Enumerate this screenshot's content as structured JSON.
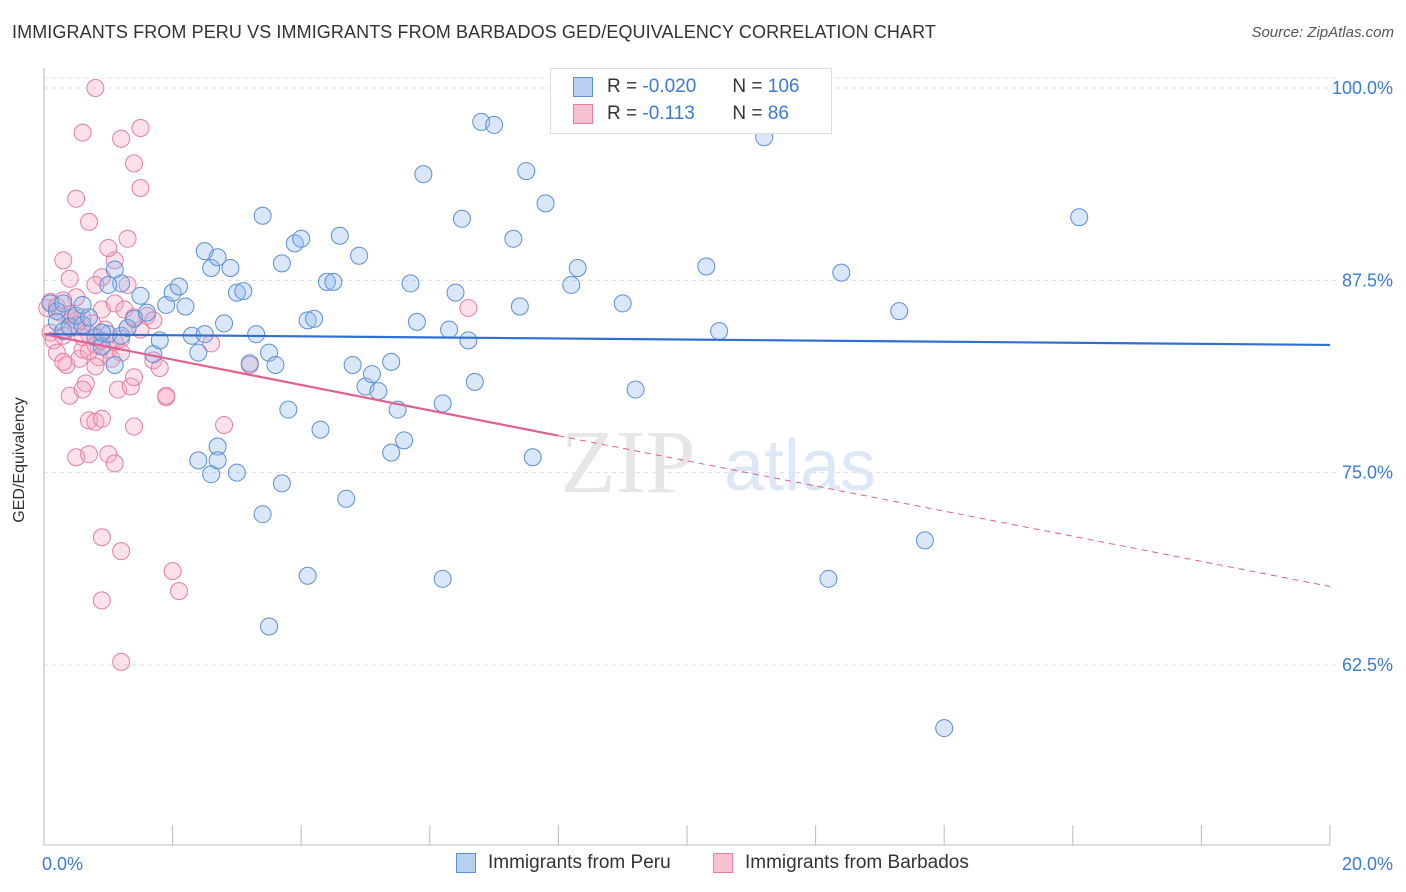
{
  "title": "IMMIGRANTS FROM PERU VS IMMIGRANTS FROM BARBADOS GED/EQUIVALENCY CORRELATION CHART",
  "source": "Source: ZipAtlas.com",
  "watermark": {
    "zip": "ZIP",
    "atlas": "atlas"
  },
  "legend": {
    "r_label": "R =",
    "n_label": "N =",
    "rows": [
      {
        "r": "-0.020",
        "n": "106",
        "color": "#5b8fd6",
        "fill": "#b7d0f2"
      },
      {
        "r": "-0.113",
        "n": "86",
        "color": "#e57fa0",
        "fill": "#f7c1d3"
      }
    ]
  },
  "bottom_legend": [
    "Immigrants from Peru",
    "Immigrants from Barbados"
  ],
  "colors": {
    "peru": "#5b8fd6",
    "peru_fill": "rgba(150,185,235,0.35)",
    "barbados": "#e57fa0",
    "barbados_fill": "rgba(245,170,195,0.35)",
    "peru_line": "#2f6fcf",
    "barbados_line": "#e0608f",
    "tick_text": "#3a7bd5"
  },
  "chart_data": {
    "type": "scatter",
    "title": "IMMIGRANTS FROM PERU VS IMMIGRANTS FROM BARBADOS GED/EQUIVALENCY CORRELATION CHART",
    "xlabel": "",
    "ylabel": "GED/Equivalency",
    "xlim": [
      0,
      20
    ],
    "ylim": [
      50.8,
      101.3
    ],
    "x_tick_labels": [
      "0.0%",
      "20.0%"
    ],
    "y_ticks": [
      62.5,
      75.0,
      87.5,
      100.0
    ],
    "y_tick_labels": [
      "62.5%",
      "75.0%",
      "87.5%",
      "100.0%"
    ],
    "grid": true,
    "series": [
      {
        "name": "Immigrants from Peru",
        "r": -0.02,
        "n": 106,
        "trend": {
          "x": [
            0,
            20
          ],
          "y": [
            84.0,
            83.3
          ]
        },
        "points": [
          [
            0.1,
            86.0
          ],
          [
            0.2,
            85.5
          ],
          [
            0.2,
            84.8
          ],
          [
            0.3,
            84.2
          ],
          [
            0.4,
            84.5
          ],
          [
            0.5,
            85.2
          ],
          [
            0.6,
            84.6
          ],
          [
            0.7,
            85.1
          ],
          [
            0.8,
            83.8
          ],
          [
            0.9,
            83.2
          ],
          [
            1.0,
            84.0
          ],
          [
            1.1,
            82.0
          ],
          [
            1.2,
            83.9
          ],
          [
            1.3,
            84.4
          ],
          [
            1.4,
            85.0
          ],
          [
            1.5,
            86.5
          ],
          [
            1.6,
            85.4
          ],
          [
            1.7,
            82.7
          ],
          [
            1.8,
            83.6
          ],
          [
            1.9,
            85.9
          ],
          [
            2.0,
            86.7
          ],
          [
            2.1,
            87.1
          ],
          [
            2.2,
            85.8
          ],
          [
            2.3,
            83.9
          ],
          [
            2.4,
            82.8
          ],
          [
            2.5,
            84.0
          ],
          [
            0.3,
            86.0
          ],
          [
            0.6,
            85.9
          ],
          [
            0.9,
            84.1
          ],
          [
            1.2,
            87.3
          ],
          [
            1.1,
            88.2
          ],
          [
            1.0,
            87.2
          ],
          [
            2.5,
            89.4
          ],
          [
            2.6,
            88.3
          ],
          [
            2.7,
            89.0
          ],
          [
            2.8,
            84.7
          ],
          [
            2.9,
            88.3
          ],
          [
            3.0,
            86.7
          ],
          [
            3.1,
            86.8
          ],
          [
            3.2,
            82.1
          ],
          [
            3.3,
            84.0
          ],
          [
            3.4,
            91.7
          ],
          [
            3.5,
            82.8
          ],
          [
            3.6,
            82.0
          ],
          [
            3.7,
            88.6
          ],
          [
            3.8,
            79.1
          ],
          [
            3.9,
            89.9
          ],
          [
            4.0,
            90.2
          ],
          [
            4.1,
            84.9
          ],
          [
            4.2,
            85.0
          ],
          [
            4.3,
            77.8
          ],
          [
            4.4,
            87.4
          ],
          [
            4.5,
            87.4
          ],
          [
            4.6,
            90.4
          ],
          [
            4.7,
            73.3
          ],
          [
            4.8,
            82.0
          ],
          [
            4.9,
            89.1
          ],
          [
            5.0,
            80.6
          ],
          [
            5.1,
            81.4
          ],
          [
            5.2,
            80.3
          ],
          [
            5.4,
            82.2
          ],
          [
            5.5,
            79.1
          ],
          [
            5.6,
            77.1
          ],
          [
            5.7,
            87.3
          ],
          [
            5.8,
            84.8
          ],
          [
            6.2,
            79.5
          ],
          [
            6.3,
            84.3
          ],
          [
            6.4,
            86.7
          ],
          [
            6.5,
            91.5
          ],
          [
            6.6,
            83.6
          ],
          [
            6.7,
            80.9
          ],
          [
            6.8,
            97.8
          ],
          [
            7.0,
            97.6
          ],
          [
            7.3,
            90.2
          ],
          [
            7.4,
            85.8
          ],
          [
            7.8,
            92.5
          ],
          [
            8.2,
            87.2
          ],
          [
            8.3,
            88.3
          ],
          [
            8.7,
            98.1
          ],
          [
            9.0,
            86.0
          ],
          [
            9.2,
            80.4
          ],
          [
            10.3,
            88.4
          ],
          [
            10.5,
            84.2
          ],
          [
            11.2,
            96.8
          ],
          [
            12.4,
            88.0
          ],
          [
            13.3,
            85.5
          ],
          [
            13.7,
            70.6
          ],
          [
            14.0,
            58.4
          ],
          [
            16.1,
            91.6
          ],
          [
            4.1,
            68.3
          ],
          [
            6.2,
            68.1
          ],
          [
            3.5,
            65.0
          ],
          [
            12.2,
            68.1
          ],
          [
            2.7,
            76.7
          ],
          [
            3.0,
            75.0
          ],
          [
            2.6,
            74.9
          ],
          [
            2.4,
            75.8
          ],
          [
            3.4,
            72.3
          ],
          [
            3.7,
            74.3
          ],
          [
            5.9,
            94.4
          ],
          [
            7.5,
            94.6
          ],
          [
            7.6,
            76.0
          ],
          [
            5.4,
            76.3
          ],
          [
            2.7,
            75.8
          ]
        ]
      },
      {
        "name": "Immigrants from Barbados",
        "r": -0.113,
        "n": 86,
        "trend": {
          "x": [
            0,
            8.0
          ],
          "y": [
            84.0,
            77.4
          ]
        },
        "trend_dashed": {
          "x": [
            8.0,
            20
          ],
          "y": [
            77.4,
            67.6
          ]
        },
        "points": [
          [
            0.05,
            85.7
          ],
          [
            0.1,
            84.1
          ],
          [
            0.15,
            83.6
          ],
          [
            0.2,
            82.8
          ],
          [
            0.25,
            85.4
          ],
          [
            0.3,
            83.9
          ],
          [
            0.35,
            82.0
          ],
          [
            0.4,
            84.4
          ],
          [
            0.45,
            85.0
          ],
          [
            0.5,
            86.4
          ],
          [
            0.55,
            82.4
          ],
          [
            0.6,
            83.0
          ],
          [
            0.65,
            80.8
          ],
          [
            0.7,
            78.4
          ],
          [
            0.75,
            84.7
          ],
          [
            0.8,
            83.3
          ],
          [
            0.85,
            82.5
          ],
          [
            0.9,
            85.6
          ],
          [
            0.95,
            84.3
          ],
          [
            1.0,
            83.0
          ],
          [
            1.05,
            82.4
          ],
          [
            1.1,
            86.0
          ],
          [
            1.15,
            80.4
          ],
          [
            1.2,
            83.7
          ],
          [
            1.25,
            85.6
          ],
          [
            1.3,
            84.4
          ],
          [
            1.35,
            80.6
          ],
          [
            1.4,
            78.0
          ],
          [
            1.5,
            84.3
          ],
          [
            1.6,
            85.2
          ],
          [
            1.7,
            82.3
          ],
          [
            1.9,
            79.9
          ],
          [
            2.0,
            68.6
          ],
          [
            2.1,
            67.3
          ],
          [
            0.3,
            88.8
          ],
          [
            0.5,
            92.8
          ],
          [
            0.7,
            91.3
          ],
          [
            0.9,
            87.7
          ],
          [
            1.1,
            88.8
          ],
          [
            1.3,
            90.2
          ],
          [
            1.5,
            93.5
          ],
          [
            0.6,
            97.1
          ],
          [
            1.2,
            96.7
          ],
          [
            1.5,
            97.4
          ],
          [
            0.8,
            100.0
          ],
          [
            1.4,
            95.1
          ],
          [
            0.4,
            87.6
          ],
          [
            0.6,
            85.1
          ],
          [
            0.8,
            87.2
          ],
          [
            1.0,
            89.6
          ],
          [
            1.3,
            87.2
          ],
          [
            1.4,
            85.1
          ],
          [
            0.3,
            82.2
          ],
          [
            0.5,
            84.9
          ],
          [
            0.7,
            84.0
          ],
          [
            0.9,
            83.6
          ],
          [
            1.1,
            83.5
          ],
          [
            1.2,
            82.8
          ],
          [
            0.4,
            80.0
          ],
          [
            0.6,
            80.4
          ],
          [
            0.8,
            78.3
          ],
          [
            1.0,
            76.2
          ],
          [
            1.1,
            75.6
          ],
          [
            1.2,
            69.9
          ],
          [
            0.9,
            70.8
          ],
          [
            0.9,
            66.7
          ],
          [
            1.2,
            62.7
          ],
          [
            0.5,
            76.0
          ],
          [
            0.7,
            76.2
          ],
          [
            0.9,
            78.5
          ],
          [
            1.4,
            81.2
          ],
          [
            1.8,
            81.8
          ],
          [
            1.9,
            80.0
          ],
          [
            2.8,
            78.1
          ],
          [
            2.6,
            83.4
          ],
          [
            3.2,
            82.0
          ],
          [
            6.6,
            85.7
          ],
          [
            0.1,
            86.1
          ],
          [
            0.2,
            85.8
          ],
          [
            0.3,
            86.2
          ],
          [
            0.4,
            85.3
          ],
          [
            0.5,
            84.6
          ],
          [
            0.6,
            83.8
          ],
          [
            0.7,
            82.9
          ],
          [
            0.8,
            81.9
          ],
          [
            1.7,
            84.9
          ]
        ]
      }
    ]
  }
}
